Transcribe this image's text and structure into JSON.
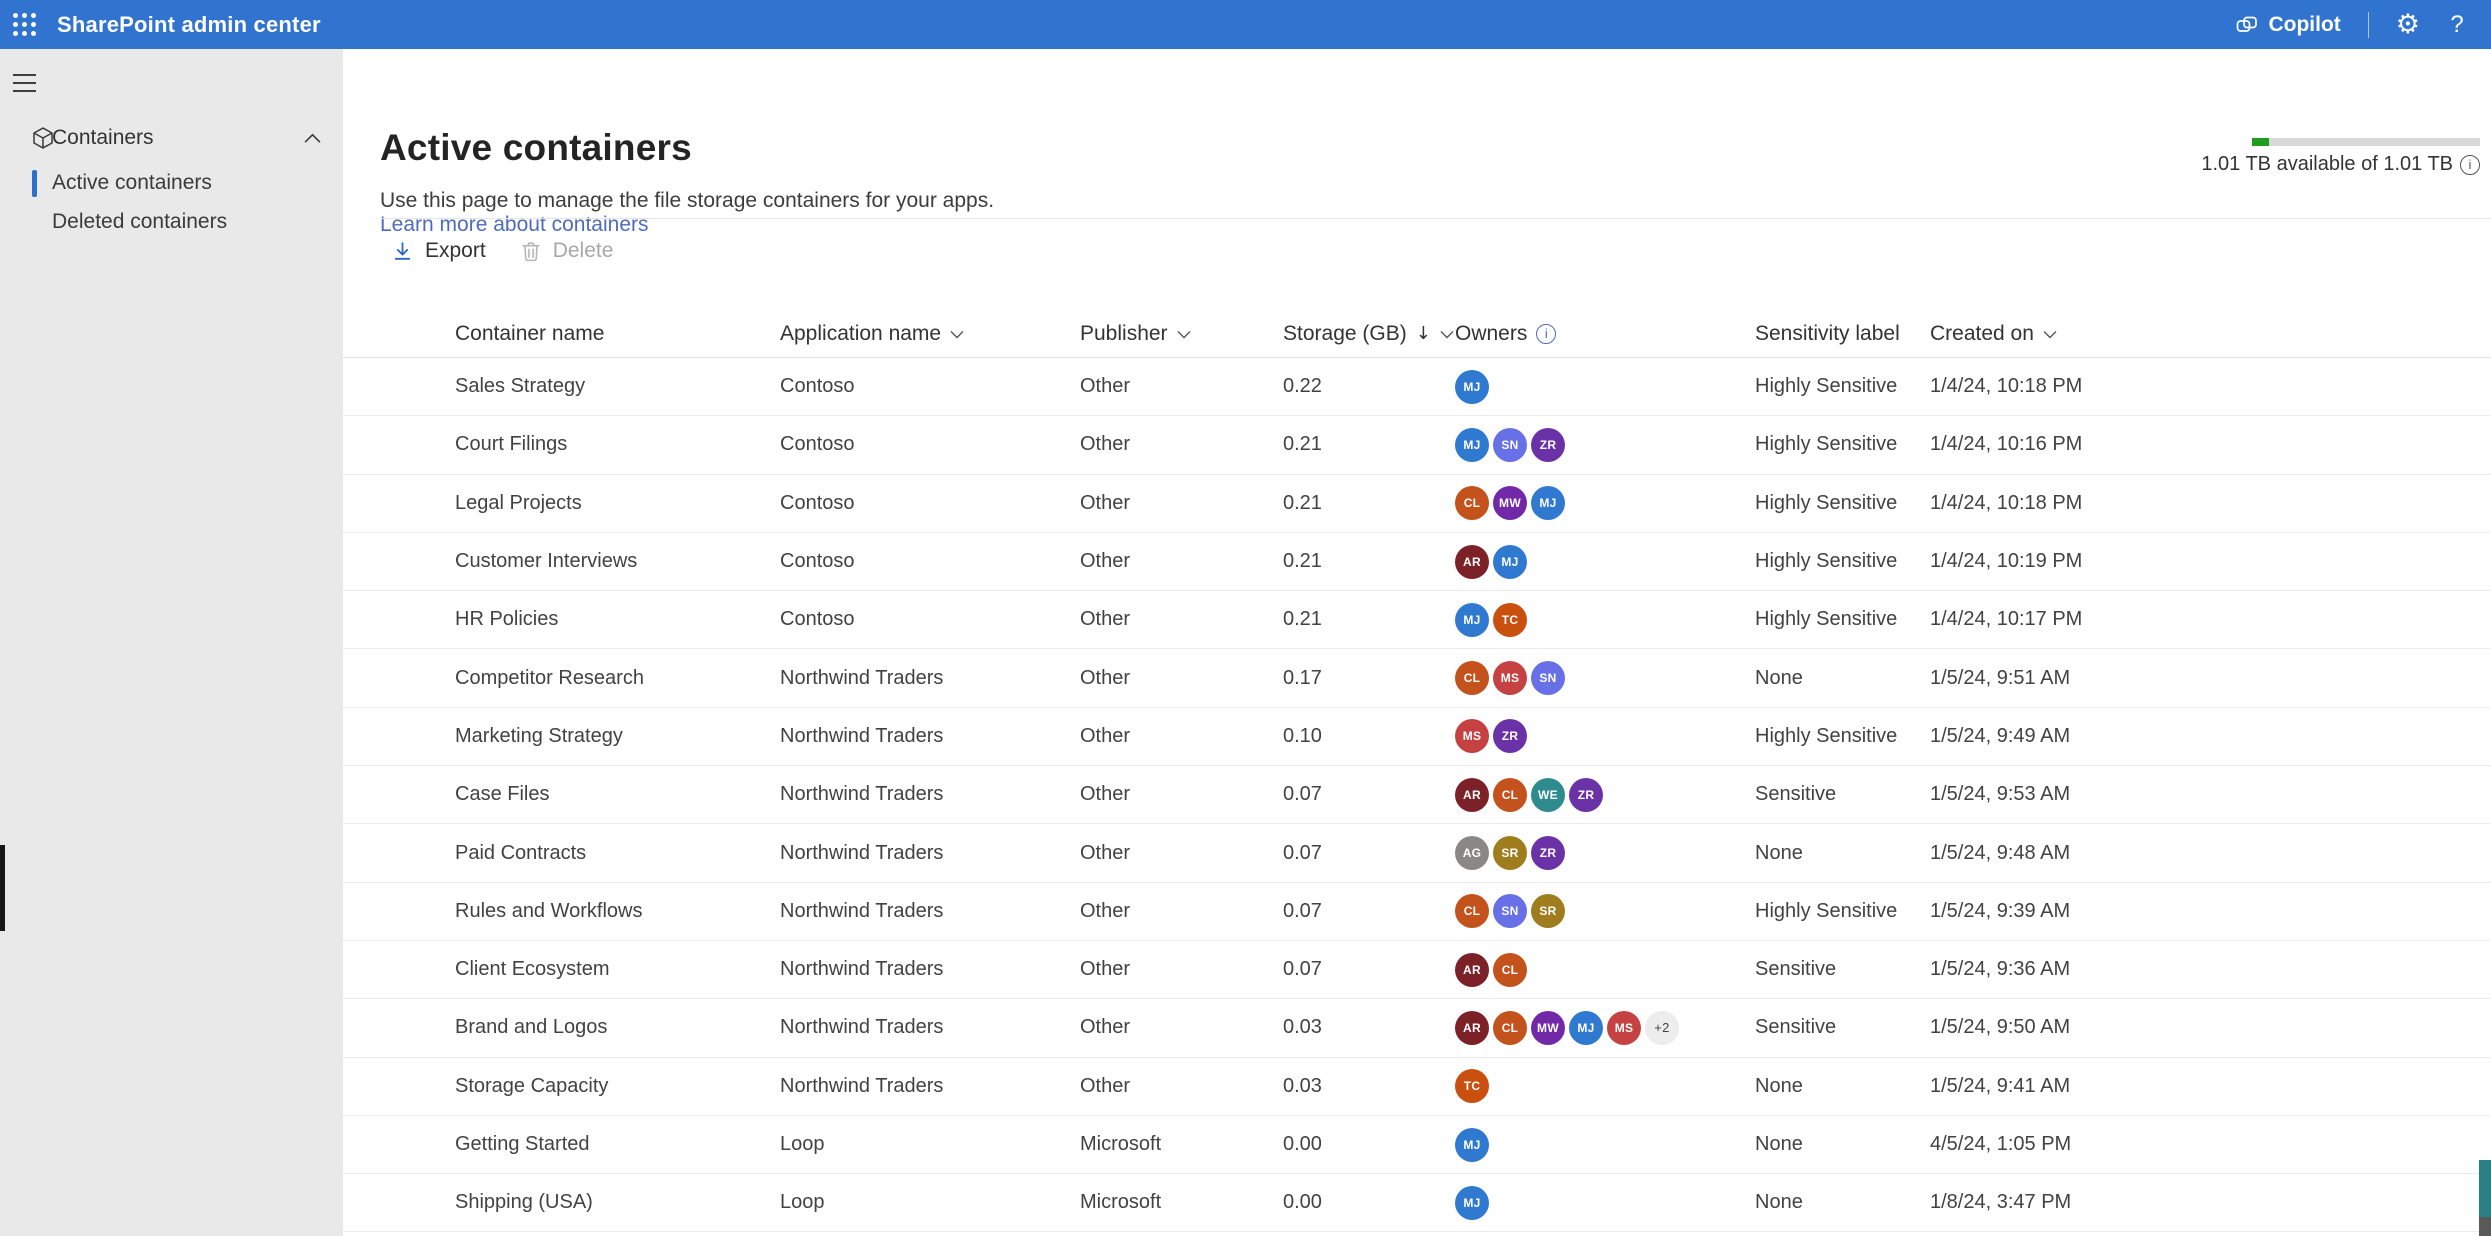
{
  "app_header": {
    "title": "SharePoint admin center",
    "copilot_label": "Copilot",
    "help_label": "?"
  },
  "sidebar": {
    "section": {
      "label": "Containers"
    },
    "items": [
      {
        "label": "Active containers",
        "selected": true
      },
      {
        "label": "Deleted containers",
        "selected": false
      }
    ]
  },
  "page": {
    "title": "Active containers",
    "description": "Use this page to manage the file storage containers for your apps.",
    "learn_more": "Learn more about containers"
  },
  "storage_summary": {
    "text": "1.01 TB available of 1.01 TB",
    "used_percent": 7.5,
    "bar_color": "#1f9d1f",
    "track_color": "#d8d8d8"
  },
  "toolbar": {
    "export_label": "Export",
    "delete_label": "Delete"
  },
  "table": {
    "columns": [
      {
        "label": "Container name",
        "chevron": false,
        "info": false,
        "sorted": ""
      },
      {
        "label": "Application name",
        "chevron": true,
        "info": false,
        "sorted": ""
      },
      {
        "label": "Publisher",
        "chevron": true,
        "info": false,
        "sorted": ""
      },
      {
        "label": "Storage (GB)",
        "chevron": true,
        "info": false,
        "sorted": "desc"
      },
      {
        "label": "Owners",
        "chevron": false,
        "info": true,
        "sorted": ""
      },
      {
        "label": "Sensitivity label",
        "chevron": false,
        "info": false,
        "sorted": ""
      },
      {
        "label": "Created on",
        "chevron": true,
        "info": false,
        "sorted": ""
      }
    ],
    "rows": [
      {
        "name": "Sales Strategy",
        "application": "Contoso",
        "publisher": "Other",
        "storage": "0.22",
        "owners": [
          "MJ"
        ],
        "sensitivity": "Highly Sensitive",
        "created": "1/4/24, 10:18 PM"
      },
      {
        "name": "Court Filings",
        "application": "Contoso",
        "publisher": "Other",
        "storage": "0.21",
        "owners": [
          "MJ",
          "SN",
          "ZR"
        ],
        "sensitivity": "Highly Sensitive",
        "created": "1/4/24, 10:16 PM"
      },
      {
        "name": "Legal Projects",
        "application": "Contoso",
        "publisher": "Other",
        "storage": "0.21",
        "owners": [
          "CL",
          "MW",
          "MJ"
        ],
        "sensitivity": "Highly Sensitive",
        "created": "1/4/24, 10:18 PM"
      },
      {
        "name": "Customer Interviews",
        "application": "Contoso",
        "publisher": "Other",
        "storage": "0.21",
        "owners": [
          "AR",
          "MJ"
        ],
        "sensitivity": "Highly Sensitive",
        "created": "1/4/24, 10:19 PM"
      },
      {
        "name": "HR Policies",
        "application": "Contoso",
        "publisher": "Other",
        "storage": "0.21",
        "owners": [
          "MJ",
          "TC"
        ],
        "sensitivity": "Highly Sensitive",
        "created": "1/4/24, 10:17 PM"
      },
      {
        "name": "Competitor Research",
        "application": "Northwind Traders",
        "publisher": "Other",
        "storage": "0.17",
        "owners": [
          "CL",
          "MS",
          "SN"
        ],
        "sensitivity": "None",
        "created": "1/5/24, 9:51 AM"
      },
      {
        "name": "Marketing Strategy",
        "application": "Northwind Traders",
        "publisher": "Other",
        "storage": "0.10",
        "owners": [
          "MS",
          "ZR"
        ],
        "sensitivity": "Highly Sensitive",
        "created": "1/5/24, 9:49 AM"
      },
      {
        "name": "Case Files",
        "application": "Northwind Traders",
        "publisher": "Other",
        "storage": "0.07",
        "owners": [
          "AR",
          "CL",
          "WE",
          "ZR"
        ],
        "sensitivity": "Sensitive",
        "created": "1/5/24, 9:53 AM"
      },
      {
        "name": "Paid Contracts",
        "application": "Northwind Traders",
        "publisher": "Other",
        "storage": "0.07",
        "owners": [
          "AG",
          "SR",
          "ZR"
        ],
        "sensitivity": "None",
        "created": "1/5/24, 9:48 AM"
      },
      {
        "name": "Rules and Workflows",
        "application": "Northwind Traders",
        "publisher": "Other",
        "storage": "0.07",
        "owners": [
          "CL",
          "SN",
          "SR"
        ],
        "sensitivity": "Highly Sensitive",
        "created": "1/5/24, 9:39 AM"
      },
      {
        "name": "Client Ecosystem",
        "application": "Northwind Traders",
        "publisher": "Other",
        "storage": "0.07",
        "owners": [
          "AR",
          "CL"
        ],
        "sensitivity": "Sensitive",
        "created": "1/5/24, 9:36 AM"
      },
      {
        "name": "Brand and Logos",
        "application": "Northwind Traders",
        "publisher": "Other",
        "storage": "0.03",
        "owners": [
          "AR",
          "CL",
          "MW",
          "MJ",
          "MS",
          "+2"
        ],
        "sensitivity": "Sensitive",
        "created": "1/5/24, 9:50 AM"
      },
      {
        "name": "Storage Capacity",
        "application": "Northwind Traders",
        "publisher": "Other",
        "storage": "0.03",
        "owners": [
          "TC"
        ],
        "sensitivity": "None",
        "created": "1/5/24, 9:41 AM"
      },
      {
        "name": "Getting Started",
        "application": "Loop",
        "publisher": "Microsoft",
        "storage": "0.00",
        "owners": [
          "MJ"
        ],
        "sensitivity": "None",
        "created": "4/5/24, 1:05 PM"
      },
      {
        "name": "Shipping (USA)",
        "application": "Loop",
        "publisher": "Microsoft",
        "storage": "0.00",
        "owners": [
          "MJ"
        ],
        "sensitivity": "None",
        "created": "1/8/24, 3:47 PM"
      }
    ]
  },
  "avatar_colors": {
    "MJ": "#2f7ad0",
    "SN": "#6770e6",
    "ZR": "#6b32a8",
    "CL": "#c4521c",
    "MW": "#7229a8",
    "AR": "#7d2128",
    "TC": "#ca5010",
    "MS": "#c64242",
    "WE": "#2e8c8e",
    "AG": "#8a8886",
    "SR": "#9f7d1c",
    "+2": "#ededed"
  },
  "colors": {
    "header_bg": "#3174cf",
    "sidebar_bg": "#e9e9e9",
    "accent_blue": "#2c70c9",
    "link_blue": "#4f6bbd",
    "storage_green": "#1f9d1f",
    "scrollbar_teal": "#2b7f86",
    "scrollbar_gray": "#595959"
  }
}
